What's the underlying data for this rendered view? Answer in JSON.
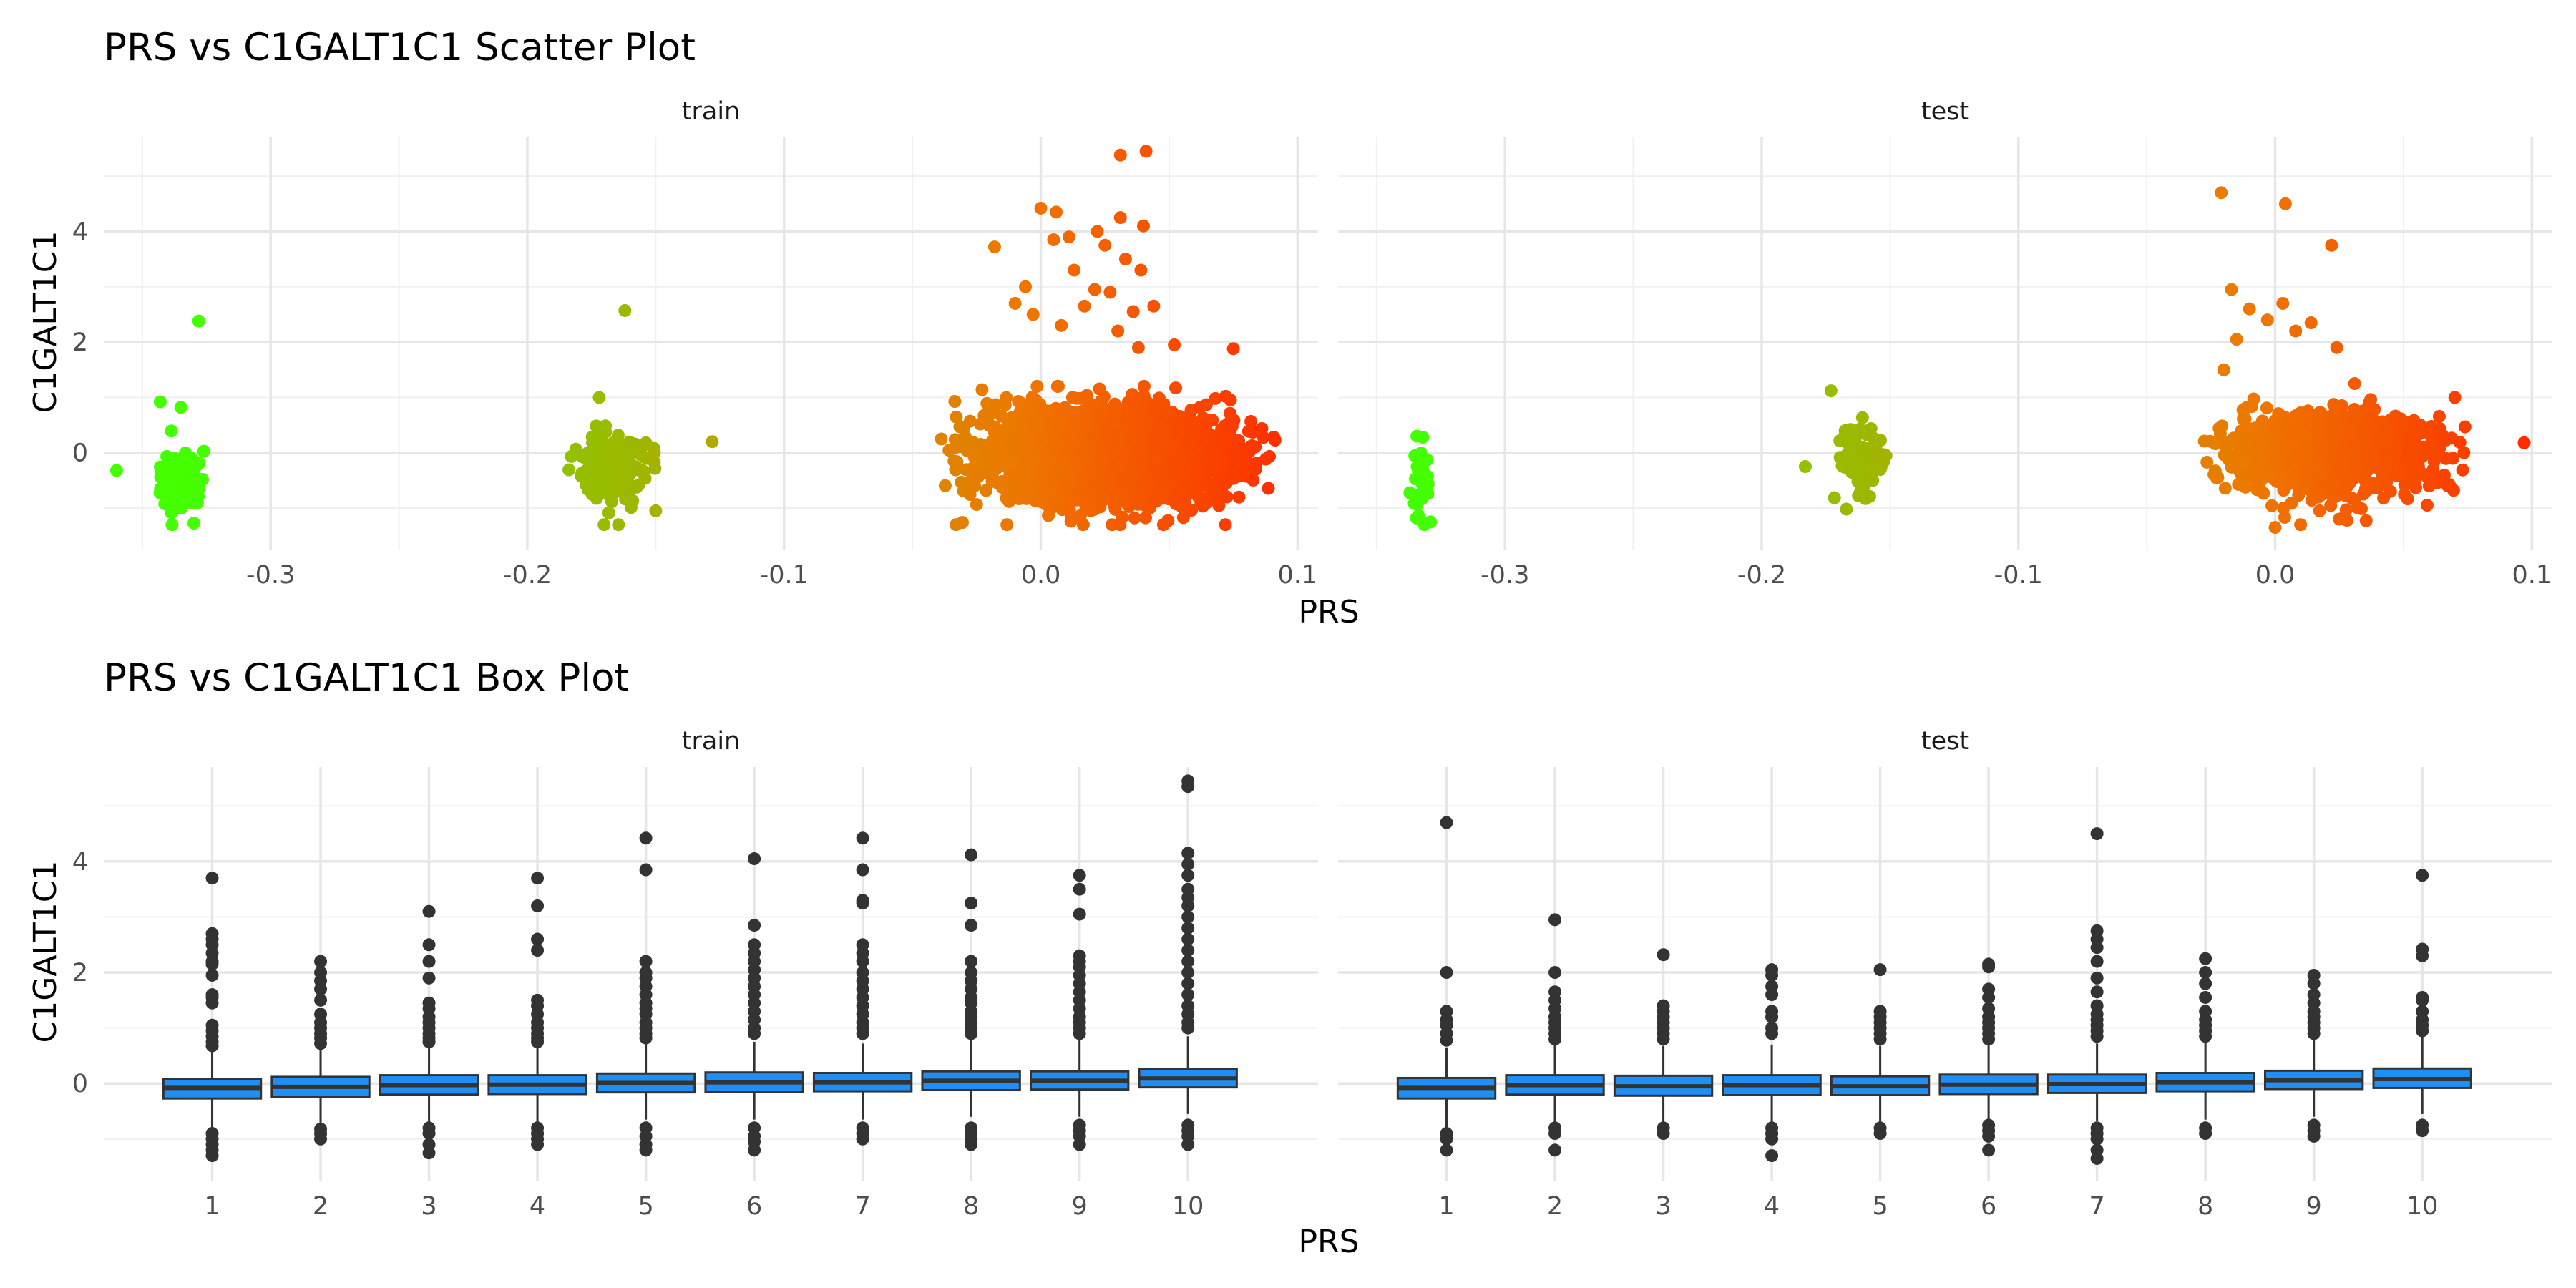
{
  "chart_data": [
    {
      "type": "scatter",
      "title": "PRS vs C1GALT1C1 Scatter Plot",
      "xlabel": "PRS",
      "ylabel": "C1GALT1C1",
      "xlim": [
        -0.365,
        0.108
      ],
      "ylim": [
        -1.75,
        5.7
      ],
      "x_ticks": [
        -0.3,
        -0.2,
        -0.1,
        0.0,
        0.1
      ],
      "x_tick_labels": [
        "-0.3",
        "-0.2",
        "-0.1",
        "0.0",
        "0.1"
      ],
      "y_ticks": [
        0,
        2,
        4
      ],
      "y_tick_labels": [
        "0",
        "2",
        "4"
      ],
      "color_scale": {
        "low": "#44ff00",
        "mid": "#ee7700",
        "high": "#ff2a00",
        "by": "PRS"
      },
      "grid": true,
      "legend": "none",
      "panels": [
        {
          "name": "train",
          "clusters": [
            {
              "x_range": [
                -0.348,
                -0.322
              ],
              "y_mean": -0.5,
              "y_sd": 0.3,
              "n": 110
            },
            {
              "x_range": [
                -0.188,
                -0.146
              ],
              "y_mean": -0.3,
              "y_sd": 0.28,
              "n": 240
            },
            {
              "x_range": [
                -0.045,
                0.1
              ],
              "y_mean": -0.05,
              "y_sd": 0.42,
              "n": 2300
            }
          ],
          "outliers": [
            {
              "x": -0.36,
              "y": -0.32
            },
            {
              "x": -0.328,
              "y": 2.38
            },
            {
              "x": -0.343,
              "y": 0.92
            },
            {
              "x": -0.335,
              "y": 0.82
            },
            {
              "x": -0.162,
              "y": 2.57
            },
            {
              "x": -0.172,
              "y": 1.0
            },
            {
              "x": -0.128,
              "y": 0.2
            },
            {
              "x": -0.15,
              "y": -1.05
            },
            {
              "x": 0.031,
              "y": 5.38
            },
            {
              "x": 0.041,
              "y": 5.45
            },
            {
              "x": 0.0,
              "y": 4.42
            },
            {
              "x": 0.006,
              "y": 4.35
            },
            {
              "x": 0.022,
              "y": 4.0
            },
            {
              "x": 0.031,
              "y": 4.25
            },
            {
              "x": 0.04,
              "y": 4.1
            },
            {
              "x": 0.011,
              "y": 3.9
            },
            {
              "x": 0.025,
              "y": 3.75
            },
            {
              "x": -0.018,
              "y": 3.72
            },
            {
              "x": 0.005,
              "y": 3.85
            },
            {
              "x": 0.033,
              "y": 3.5
            },
            {
              "x": 0.039,
              "y": 3.3
            },
            {
              "x": 0.013,
              "y": 3.3
            },
            {
              "x": -0.006,
              "y": 3.0
            },
            {
              "x": 0.021,
              "y": 2.95
            },
            {
              "x": 0.027,
              "y": 2.9
            },
            {
              "x": -0.01,
              "y": 2.7
            },
            {
              "x": 0.017,
              "y": 2.65
            },
            {
              "x": 0.036,
              "y": 2.55
            },
            {
              "x": 0.044,
              "y": 2.65
            },
            {
              "x": -0.003,
              "y": 2.5
            },
            {
              "x": 0.008,
              "y": 2.3
            },
            {
              "x": 0.03,
              "y": 2.2
            },
            {
              "x": 0.052,
              "y": 1.95
            },
            {
              "x": 0.075,
              "y": 1.88
            },
            {
              "x": 0.038,
              "y": 1.9
            },
            {
              "x": 0.062,
              "y": 0.82
            },
            {
              "x": 0.068,
              "y": 0.98
            },
            {
              "x": 0.072,
              "y": 1.02
            }
          ]
        },
        {
          "name": "test",
          "clusters": [
            {
              "x_range": [
                -0.338,
                -0.328
              ],
              "y_mean": -0.5,
              "y_sd": 0.3,
              "n": 35
            },
            {
              "x_range": [
                -0.175,
                -0.148
              ],
              "y_mean": -0.1,
              "y_sd": 0.3,
              "n": 70
            },
            {
              "x_range": [
                -0.038,
                0.085
              ],
              "y_mean": 0.0,
              "y_sd": 0.38,
              "n": 900
            }
          ],
          "outliers": [
            {
              "x": -0.329,
              "y": -1.25
            },
            {
              "x": -0.332,
              "y": 0.28
            },
            {
              "x": -0.173,
              "y": 1.12
            },
            {
              "x": -0.167,
              "y": -1.02
            },
            {
              "x": -0.183,
              "y": -0.25
            },
            {
              "x": -0.021,
              "y": 4.7
            },
            {
              "x": 0.004,
              "y": 4.5
            },
            {
              "x": 0.022,
              "y": 3.75
            },
            {
              "x": -0.017,
              "y": 2.95
            },
            {
              "x": 0.003,
              "y": 2.7
            },
            {
              "x": -0.01,
              "y": 2.6
            },
            {
              "x": -0.003,
              "y": 2.4
            },
            {
              "x": 0.014,
              "y": 2.35
            },
            {
              "x": 0.008,
              "y": 2.2
            },
            {
              "x": -0.015,
              "y": 2.05
            },
            {
              "x": 0.024,
              "y": 1.9
            },
            {
              "x": 0.031,
              "y": 1.25
            },
            {
              "x": 0.07,
              "y": 1.0
            },
            {
              "x": 0.097,
              "y": 0.18
            },
            {
              "x": -0.02,
              "y": 1.5
            },
            {
              "x": 0.0,
              "y": -1.35
            },
            {
              "x": 0.025,
              "y": -1.2
            },
            {
              "x": 0.06,
              "y": -0.6
            }
          ]
        }
      ]
    },
    {
      "type": "box",
      "title": "PRS vs C1GALT1C1 Box Plot",
      "xlabel": "PRS",
      "ylabel": "C1GALT1C1",
      "ylim": [
        -1.75,
        5.7
      ],
      "categories": [
        "1",
        "2",
        "3",
        "4",
        "5",
        "6",
        "7",
        "8",
        "9",
        "10"
      ],
      "y_ticks": [
        0,
        2,
        4
      ],
      "y_tick_labels": [
        "0",
        "2",
        "4"
      ],
      "fill": "#1f8ff5",
      "outline": "#333333",
      "grid": true,
      "panels": [
        {
          "name": "train",
          "boxes": [
            {
              "q1": -0.27,
              "median": -0.08,
              "q3": 0.08,
              "whisker_low": -0.8,
              "whisker_high": 0.6,
              "outliers": [
                3.7,
                2.7,
                2.6,
                2.5,
                2.35,
                2.2,
                2.15,
                1.95,
                1.6,
                1.55,
                1.45,
                1.05,
                0.95,
                0.85,
                0.75,
                0.68,
                -0.9,
                -1.0,
                -1.1,
                -1.2,
                -1.3
              ]
            },
            {
              "q1": -0.24,
              "median": -0.06,
              "q3": 0.12,
              "whisker_low": -0.75,
              "whisker_high": 0.65,
              "outliers": [
                2.2,
                2.0,
                1.85,
                1.7,
                1.5,
                1.25,
                1.1,
                1.0,
                0.9,
                0.82,
                0.72,
                -0.82,
                -0.9,
                -1.0
              ]
            },
            {
              "q1": -0.2,
              "median": -0.03,
              "q3": 0.15,
              "whisker_low": -0.7,
              "whisker_high": 0.7,
              "outliers": [
                3.1,
                2.5,
                2.2,
                1.9,
                1.45,
                1.35,
                1.2,
                1.1,
                1.0,
                0.9,
                0.82,
                0.75,
                -0.8,
                -0.9,
                -1.1,
                -1.25
              ]
            },
            {
              "q1": -0.19,
              "median": -0.02,
              "q3": 0.15,
              "whisker_low": -0.7,
              "whisker_high": 0.7,
              "outliers": [
                3.7,
                3.2,
                2.6,
                2.4,
                1.5,
                1.4,
                1.25,
                1.1,
                1.0,
                0.9,
                0.82,
                0.75,
                -0.8,
                -0.9,
                -1.0,
                -1.1
              ]
            },
            {
              "q1": -0.16,
              "median": 0.01,
              "q3": 0.18,
              "whisker_low": -0.65,
              "whisker_high": 0.72,
              "outliers": [
                4.42,
                3.85,
                2.2,
                2.0,
                1.9,
                1.75,
                1.6,
                1.45,
                1.35,
                1.25,
                1.1,
                1.0,
                0.9,
                0.82,
                -0.8,
                -0.95,
                -1.1,
                -1.2
              ]
            },
            {
              "q1": -0.15,
              "median": 0.02,
              "q3": 0.2,
              "whisker_low": -0.65,
              "whisker_high": 0.75,
              "outliers": [
                4.05,
                2.85,
                2.5,
                2.35,
                2.2,
                2.05,
                1.9,
                1.75,
                1.6,
                1.45,
                1.3,
                1.15,
                1.0,
                0.9,
                -0.8,
                -0.95,
                -1.05,
                -1.2
              ]
            },
            {
              "q1": -0.14,
              "median": 0.02,
              "q3": 0.19,
              "whisker_low": -0.65,
              "whisker_high": 0.72,
              "outliers": [
                4.42,
                3.85,
                3.3,
                3.25,
                2.5,
                2.35,
                2.2,
                2.0,
                1.85,
                1.7,
                1.55,
                1.4,
                1.25,
                1.1,
                1.0,
                0.9,
                -0.8,
                -0.9,
                -1.0
              ]
            },
            {
              "q1": -0.12,
              "median": 0.05,
              "q3": 0.22,
              "whisker_low": -0.6,
              "whisker_high": 0.78,
              "outliers": [
                4.12,
                3.25,
                2.85,
                2.2,
                2.0,
                1.85,
                1.7,
                1.55,
                1.45,
                1.3,
                1.2,
                1.1,
                1.0,
                0.9,
                -0.8,
                -0.9,
                -1.0,
                -1.1
              ]
            },
            {
              "q1": -0.11,
              "median": 0.05,
              "q3": 0.22,
              "whisker_low": -0.6,
              "whisker_high": 0.8,
              "outliers": [
                3.75,
                3.5,
                3.05,
                2.3,
                2.2,
                2.1,
                1.95,
                1.8,
                1.65,
                1.5,
                1.35,
                1.2,
                1.1,
                1.0,
                0.9,
                -0.75,
                -0.85,
                -0.95,
                -1.1
              ]
            },
            {
              "q1": -0.07,
              "median": 0.09,
              "q3": 0.26,
              "whisker_low": -0.55,
              "whisker_high": 0.85,
              "outliers": [
                5.45,
                5.35,
                4.15,
                3.95,
                3.75,
                3.5,
                3.35,
                3.2,
                3.0,
                2.8,
                2.6,
                2.4,
                2.2,
                2.0,
                1.8,
                1.6,
                1.4,
                1.25,
                1.1,
                1.0,
                -0.75,
                -0.85,
                -0.95,
                -1.1
              ]
            }
          ]
        },
        {
          "name": "test",
          "boxes": [
            {
              "q1": -0.27,
              "median": -0.08,
              "q3": 0.1,
              "whisker_low": -0.8,
              "whisker_high": 0.65,
              "outliers": [
                4.7,
                2.0,
                1.3,
                1.15,
                1.05,
                0.9,
                0.78,
                -0.9,
                -1.0,
                -1.2
              ]
            },
            {
              "q1": -0.2,
              "median": -0.03,
              "q3": 0.15,
              "whisker_low": -0.7,
              "whisker_high": 0.7,
              "outliers": [
                2.95,
                2.0,
                1.65,
                1.5,
                1.35,
                1.2,
                1.1,
                1.0,
                0.9,
                0.8,
                -0.8,
                -0.9,
                -1.2
              ]
            },
            {
              "q1": -0.22,
              "median": -0.05,
              "q3": 0.14,
              "whisker_low": -0.7,
              "whisker_high": 0.68,
              "outliers": [
                2.32,
                1.4,
                1.3,
                1.2,
                1.1,
                1.0,
                0.9,
                0.8,
                -0.8,
                -0.9
              ]
            },
            {
              "q1": -0.21,
              "median": -0.03,
              "q3": 0.15,
              "whisker_low": -0.7,
              "whisker_high": 0.7,
              "outliers": [
                2.05,
                1.95,
                1.75,
                1.6,
                1.3,
                1.2,
                1.0,
                0.9,
                -0.8,
                -0.9,
                -1.0,
                -1.3
              ]
            },
            {
              "q1": -0.21,
              "median": -0.05,
              "q3": 0.13,
              "whisker_low": -0.7,
              "whisker_high": 0.68,
              "outliers": [
                2.05,
                1.3,
                1.2,
                1.1,
                1.0,
                0.9,
                0.8,
                -0.8,
                -0.9
              ]
            },
            {
              "q1": -0.19,
              "median": -0.02,
              "q3": 0.16,
              "whisker_low": -0.68,
              "whisker_high": 0.72,
              "outliers": [
                2.15,
                2.1,
                1.7,
                1.55,
                1.35,
                1.2,
                1.1,
                1.0,
                0.9,
                0.8,
                -0.75,
                -0.85,
                -0.95,
                -1.2
              ]
            },
            {
              "q1": -0.17,
              "median": -0.01,
              "q3": 0.16,
              "whisker_low": -0.68,
              "whisker_high": 0.72,
              "outliers": [
                4.5,
                2.75,
                2.6,
                2.45,
                2.2,
                1.9,
                1.65,
                1.4,
                1.25,
                1.15,
                1.05,
                0.95,
                0.85,
                -0.8,
                -0.9,
                -1.0,
                -1.2,
                -1.35
              ]
            },
            {
              "q1": -0.14,
              "median": 0.02,
              "q3": 0.19,
              "whisker_low": -0.65,
              "whisker_high": 0.75,
              "outliers": [
                2.25,
                2.0,
                1.8,
                1.55,
                1.3,
                1.15,
                1.05,
                0.95,
                0.85,
                -0.8,
                -0.9
              ]
            },
            {
              "q1": -0.1,
              "median": 0.06,
              "q3": 0.23,
              "whisker_low": -0.6,
              "whisker_high": 0.8,
              "outliers": [
                1.95,
                1.8,
                1.6,
                1.45,
                1.3,
                1.2,
                1.1,
                1.0,
                0.9,
                -0.75,
                -0.85,
                -0.95
              ]
            },
            {
              "q1": -0.08,
              "median": 0.08,
              "q3": 0.27,
              "whisker_low": -0.55,
              "whisker_high": 0.85,
              "outliers": [
                3.75,
                2.42,
                2.3,
                1.55,
                1.5,
                1.3,
                1.15,
                1.05,
                0.95,
                -0.75,
                -0.85
              ]
            }
          ]
        }
      ]
    }
  ]
}
